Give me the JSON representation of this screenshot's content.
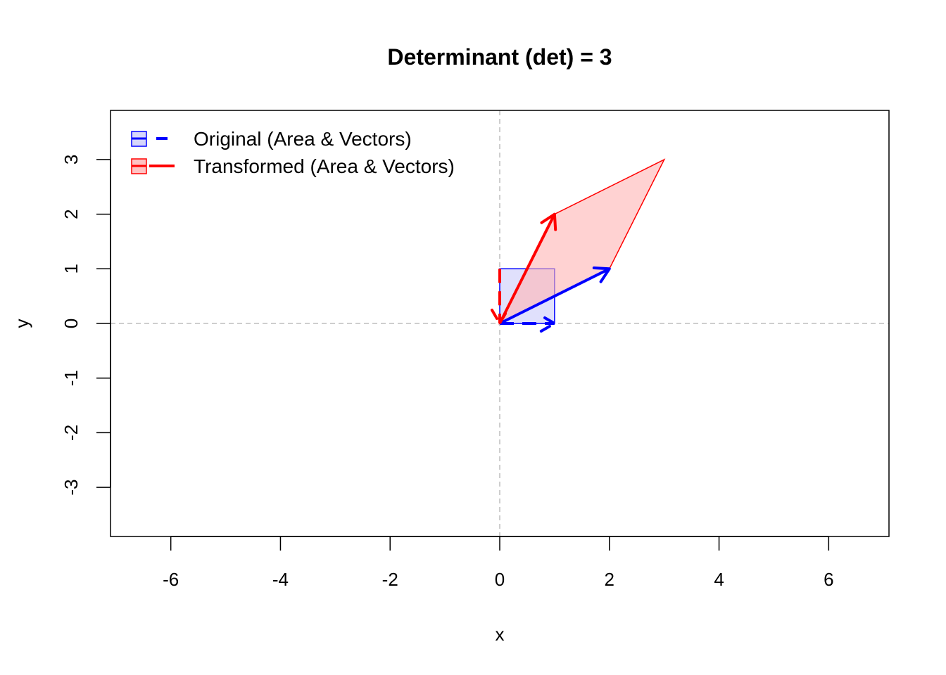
{
  "chart_data": {
    "type": "vector-transform",
    "title": "Determinant (det) = 3",
    "xlabel": "x",
    "ylabel": "y",
    "xlim": [
      -7.1,
      7.1
    ],
    "ylim": [
      -3.9,
      3.9
    ],
    "x_ticks": [
      -6,
      -4,
      -2,
      0,
      2,
      4,
      6
    ],
    "y_ticks": [
      -3,
      -2,
      -1,
      0,
      1,
      2,
      3
    ],
    "x_tick_labels": [
      "-6",
      "-4",
      "-2",
      "0",
      "2",
      "4",
      "6"
    ],
    "y_tick_labels": [
      "-3",
      "-2",
      "-1",
      "0",
      "1",
      "2",
      "3"
    ],
    "reference_lines": {
      "x": 0,
      "y": 0,
      "color": "#bebebe",
      "style": "dashed"
    },
    "grid": false,
    "legend_position": "top-left",
    "series": [
      {
        "name": "Original (Area & Vectors)",
        "color": "#0000ff",
        "fill": "#ccccfa",
        "line_style": "dashed",
        "polygon": [
          [
            0,
            0
          ],
          [
            1,
            0
          ],
          [
            1,
            1
          ],
          [
            0,
            1
          ]
        ],
        "vectors": [
          {
            "from": [
              0,
              0
            ],
            "to": [
              1,
              0
            ],
            "color": "#0000ff",
            "style": "dashed"
          },
          {
            "from": [
              0,
              1
            ],
            "to": [
              0,
              0
            ],
            "color": "#ff0000",
            "style": "dashed"
          }
        ]
      },
      {
        "name": "Transformed (Area & Vectors)",
        "color": "#ff0000",
        "fill": "#ffb4b4",
        "line_style": "solid",
        "polygon": [
          [
            0,
            0
          ],
          [
            2,
            1
          ],
          [
            3,
            3
          ],
          [
            1,
            2
          ]
        ],
        "vectors": [
          {
            "from": [
              0,
              0
            ],
            "to": [
              2,
              1
            ],
            "color": "#0000ff",
            "style": "solid"
          },
          {
            "from": [
              0,
              0
            ],
            "to": [
              1,
              2
            ],
            "color": "#ff0000",
            "style": "solid"
          }
        ]
      }
    ]
  }
}
